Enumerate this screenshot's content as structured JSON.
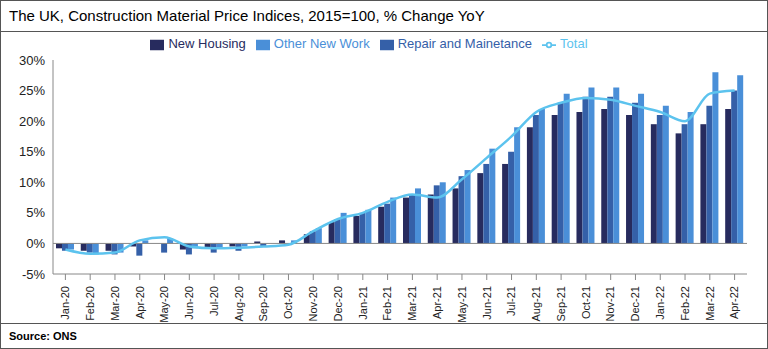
{
  "chart_data": {
    "type": "bar",
    "title": "The UK, Construction Material Price Indices, 2015=100, % Change YoY",
    "source": "Source: ONS",
    "categories": [
      "Jan-20",
      "Feb-20",
      "Mar-20",
      "Apr-20",
      "May-20",
      "Jun-20",
      "Jul-20",
      "Aug-20",
      "Sep-20",
      "Oct-20",
      "Nov-20",
      "Dec-20",
      "Jan-21",
      "Feb-21",
      "Mar-21",
      "Apr-21",
      "May-21",
      "Jun-21",
      "Jul-21",
      "Aug-21",
      "Sep-21",
      "Oct-21",
      "Nov-21",
      "Dec-21",
      "Jan-22",
      "Feb-22",
      "Mar-22",
      "Apr-22"
    ],
    "series": [
      {
        "name": "New Housing",
        "type": "bar",
        "color": "#272b5e",
        "values": [
          -0.8,
          -1.2,
          -1.2,
          -0.5,
          0,
          -1.0,
          -0.8,
          -0.5,
          0.3,
          0.5,
          1.5,
          3.5,
          4.5,
          6.0,
          7.5,
          8.0,
          9.0,
          11.5,
          13.0,
          19.0,
          21.0,
          21.5,
          22.0,
          21.0,
          19.5,
          18.0,
          19.5,
          22.0
        ]
      },
      {
        "name": "Repair and Mainetance",
        "type": "bar",
        "color": "#3560a8",
        "values": [
          -1.2,
          -1.5,
          -1.8,
          -2.0,
          -1.5,
          -1.8,
          -1.5,
          -1.2,
          -0.5,
          0,
          2.0,
          4.0,
          5.0,
          6.5,
          8.0,
          9.5,
          11.0,
          13.0,
          15.0,
          21.0,
          23.0,
          24.0,
          24.0,
          23.0,
          21.0,
          19.5,
          22.5,
          25.0
        ]
      },
      {
        "name": "Other New Work",
        "type": "bar",
        "color": "#4a8fd8",
        "values": [
          -1.0,
          -1.8,
          -1.5,
          0.5,
          0.8,
          -0.8,
          -0.8,
          -0.5,
          0,
          0.5,
          2.5,
          5.0,
          5.5,
          7.5,
          9.0,
          10.0,
          12.0,
          15.5,
          19.0,
          22.0,
          24.5,
          25.5,
          25.5,
          24.5,
          22.5,
          21.5,
          28.0,
          27.5
        ]
      },
      {
        "name": "Total",
        "type": "line",
        "color": "#5cc3ee",
        "marker": "none",
        "line_style": "solid",
        "values": [
          -1.0,
          -1.7,
          -1.5,
          0.5,
          1.0,
          -0.5,
          -0.8,
          -0.7,
          -0.5,
          -0.2,
          2.0,
          4.0,
          5.0,
          6.8,
          8.0,
          7.5,
          10.5,
          14.0,
          17.5,
          21.5,
          23.0,
          23.8,
          23.5,
          22.5,
          21.5,
          20.0,
          24.5,
          25.0
        ]
      }
    ],
    "ylim": [
      -5,
      30
    ],
    "yticks": [
      {
        "value": -5,
        "label": "-5%"
      },
      {
        "value": 0,
        "label": "0%"
      },
      {
        "value": 5,
        "label": "5%"
      },
      {
        "value": 10,
        "label": "10%"
      },
      {
        "value": 15,
        "label": "15%"
      },
      {
        "value": 20,
        "label": "20%"
      },
      {
        "value": 25,
        "label": "25%"
      },
      {
        "value": 30,
        "label": "30%"
      }
    ],
    "grid": false,
    "legend": "top"
  }
}
